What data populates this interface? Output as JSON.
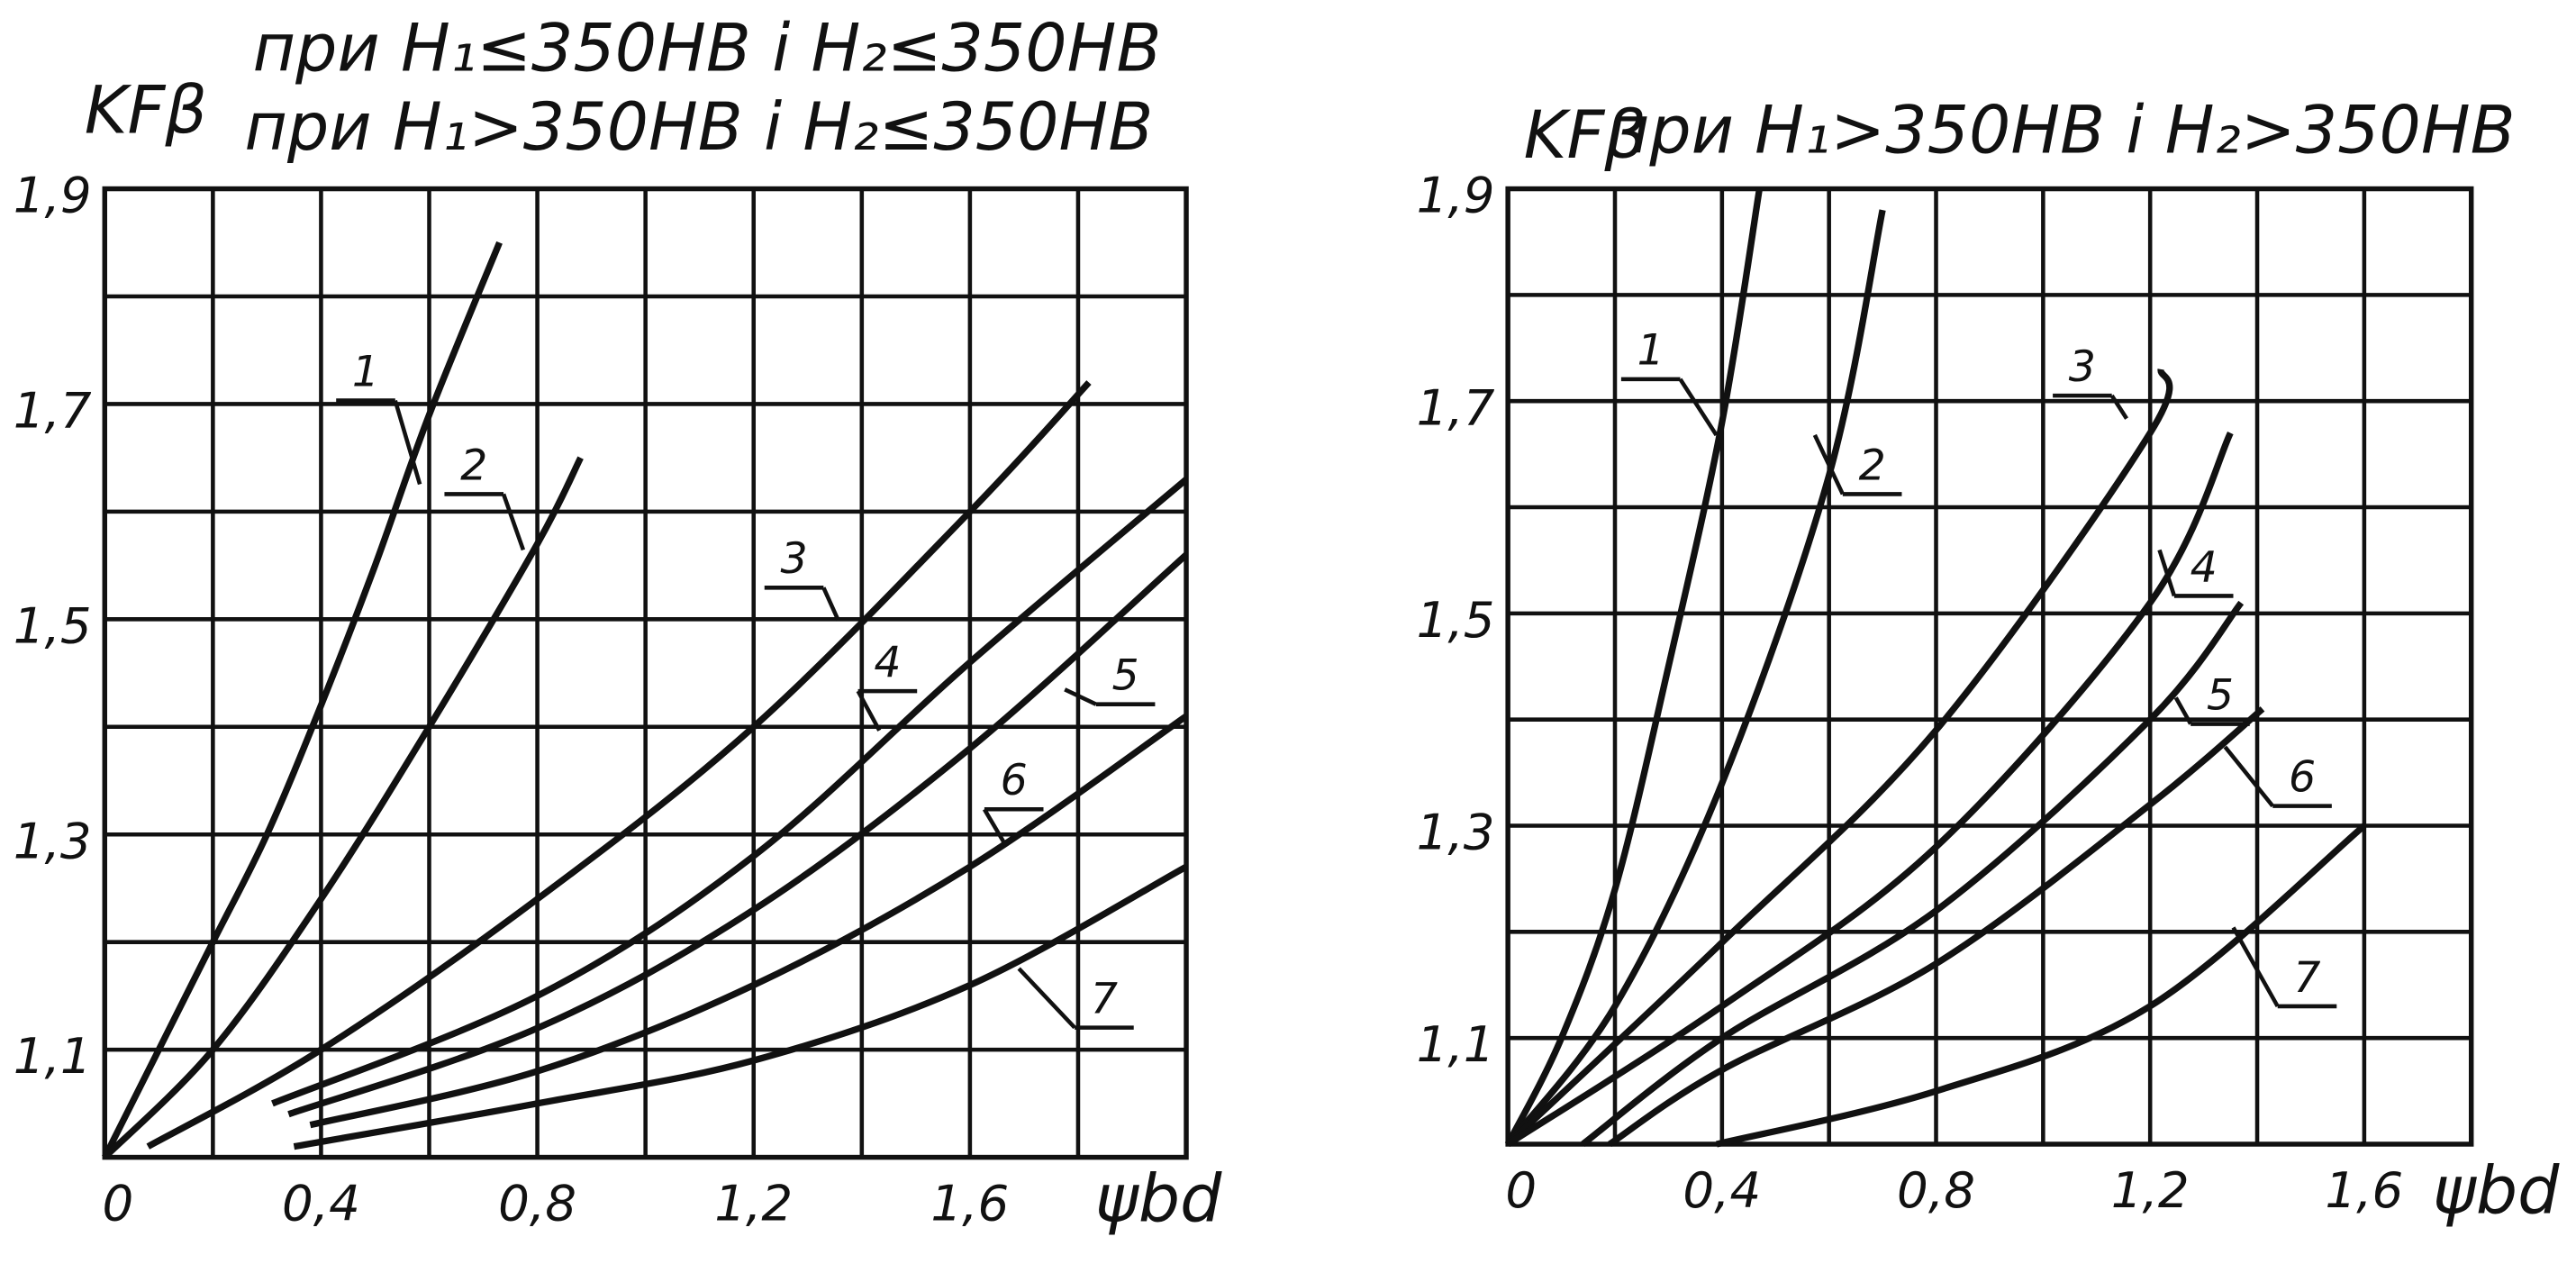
{
  "chart_data": [
    {
      "type": "line",
      "title": [
        "при H₁≤350HB і H₂≤350HB",
        "при H₁>350HB і H₂≤350HB"
      ],
      "ylabel": "KFβ",
      "xlabel": "ψbd",
      "xlim": [
        0,
        2.0
      ],
      "ylim": [
        1.0,
        1.9
      ],
      "xticks": [
        0,
        {
          "value": 0.4,
          "label": "0,4"
        },
        {
          "value": 0.8,
          "label": "0,8"
        },
        {
          "value": 1.2,
          "label": "1,2"
        },
        {
          "value": 1.6,
          "label": "1,6"
        }
      ],
      "xminor": [
        0.2,
        0.6,
        1.0,
        1.4,
        1.8
      ],
      "yticks": [
        {
          "value": 1.1,
          "label": "1,1"
        },
        {
          "value": 1.3,
          "label": "1,3"
        },
        {
          "value": 1.5,
          "label": "1,5"
        },
        {
          "value": 1.7,
          "label": "1,7"
        },
        {
          "value": 1.9,
          "label": "1,9"
        }
      ],
      "yminor": [
        1.2,
        1.4,
        1.6,
        1.8
      ],
      "grid": true,
      "series": [
        {
          "name": "1",
          "color": "#111111",
          "x": [
            0,
            0.1,
            0.2,
            0.3,
            0.4,
            0.5,
            0.6,
            0.73
          ],
          "values": [
            1.0,
            1.1,
            1.2,
            1.3,
            1.42,
            1.55,
            1.69,
            1.85
          ]
        },
        {
          "name": "2",
          "color": "#111111",
          "x": [
            0,
            0.2,
            0.4,
            0.6,
            0.8,
            0.88
          ],
          "values": [
            1.0,
            1.1,
            1.24,
            1.4,
            1.57,
            1.65
          ]
        },
        {
          "name": "3",
          "color": "#111111",
          "x": [
            0.08,
            0.4,
            0.8,
            1.2,
            1.6,
            1.82
          ],
          "values": [
            1.01,
            1.1,
            1.24,
            1.4,
            1.6,
            1.72
          ]
        },
        {
          "name": "4",
          "color": "#111111",
          "x": [
            0.31,
            0.8,
            1.2,
            1.6,
            2.0
          ],
          "values": [
            1.05,
            1.15,
            1.28,
            1.46,
            1.63
          ]
        },
        {
          "name": "5",
          "color": "#111111",
          "x": [
            0.34,
            0.8,
            1.2,
            1.6,
            2.0
          ],
          "values": [
            1.04,
            1.12,
            1.23,
            1.38,
            1.56
          ]
        },
        {
          "name": "6",
          "color": "#111111",
          "x": [
            0.38,
            0.8,
            1.2,
            1.6,
            2.0
          ],
          "values": [
            1.03,
            1.08,
            1.16,
            1.27,
            1.41
          ]
        },
        {
          "name": "7",
          "color": "#111111",
          "x": [
            0.35,
            0.8,
            1.2,
            1.6,
            2.0
          ],
          "values": [
            1.01,
            1.05,
            1.09,
            1.16,
            1.27
          ]
        }
      ]
    },
    {
      "type": "line",
      "title": "при H₁>350HB і H₂>350HB",
      "ylabel": "KFβ",
      "xlabel": "ψbd",
      "xlim": [
        0,
        1.8
      ],
      "ylim": [
        1.0,
        1.9
      ],
      "xticks": [
        0,
        {
          "value": 0.4,
          "label": "0,4"
        },
        {
          "value": 0.8,
          "label": "0,8"
        },
        {
          "value": 1.2,
          "label": "1,2"
        },
        {
          "value": 1.6,
          "label": "1,6"
        }
      ],
      "xminor": [
        0.2,
        0.6,
        1.0,
        1.4
      ],
      "yticks": [
        {
          "value": 1.1,
          "label": "1,1"
        },
        {
          "value": 1.3,
          "label": "1,3"
        },
        {
          "value": 1.5,
          "label": "1,5"
        },
        {
          "value": 1.7,
          "label": "1,7"
        },
        {
          "value": 1.9,
          "label": "1,9"
        }
      ],
      "yminor": [
        1.2,
        1.4,
        1.6,
        1.8
      ],
      "grid": true,
      "series": [
        {
          "name": "1",
          "color": "#111111",
          "x": [
            0,
            0.1,
            0.2,
            0.3,
            0.4,
            0.47
          ],
          "values": [
            1.0,
            1.1,
            1.24,
            1.45,
            1.68,
            1.9
          ]
        },
        {
          "name": "2",
          "color": "#111111",
          "x": [
            0,
            0.2,
            0.4,
            0.6,
            0.7
          ],
          "values": [
            1.0,
            1.13,
            1.34,
            1.63,
            1.88
          ]
        },
        {
          "name": "3",
          "color": "#111111",
          "x": [
            0,
            0.4,
            0.8,
            1.2,
            1.22
          ],
          "values": [
            1.0,
            1.19,
            1.39,
            1.67,
            1.73
          ]
        },
        {
          "name": "4",
          "color": "#111111",
          "x": [
            0,
            0.4,
            0.8,
            1.2,
            1.35
          ],
          "values": [
            1.0,
            1.13,
            1.28,
            1.51,
            1.67
          ]
        },
        {
          "name": "5",
          "color": "#111111",
          "x": [
            0.14,
            0.4,
            0.8,
            1.2,
            1.37
          ],
          "values": [
            1.0,
            1.1,
            1.22,
            1.4,
            1.51
          ]
        },
        {
          "name": "6",
          "color": "#111111",
          "x": [
            0.19,
            0.4,
            0.8,
            1.2,
            1.41
          ],
          "values": [
            1.0,
            1.07,
            1.17,
            1.32,
            1.41
          ]
        },
        {
          "name": "7",
          "color": "#111111",
          "x": [
            0.39,
            0.8,
            1.2,
            1.6
          ],
          "values": [
            1.0,
            1.05,
            1.13,
            1.3
          ]
        }
      ]
    }
  ]
}
